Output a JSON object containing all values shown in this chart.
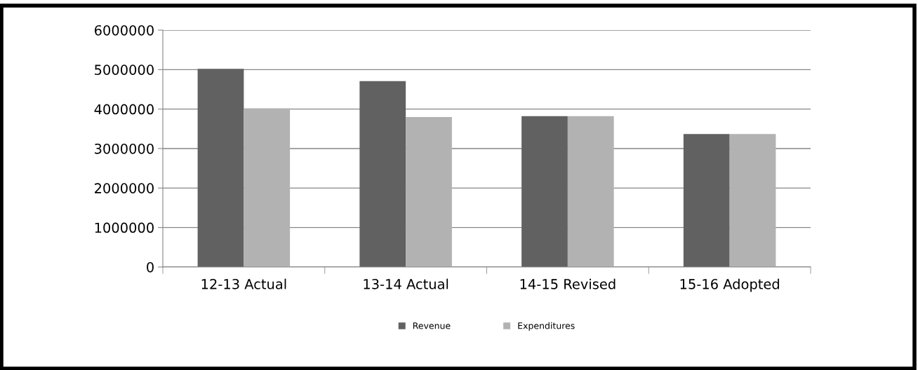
{
  "chart_data": {
    "type": "bar",
    "categories": [
      "12-13 Actual",
      "13-14 Actual",
      "14-15 Revised",
      "15-16 Adopted"
    ],
    "series": [
      {
        "name": "Revenue",
        "color": "#616161",
        "values": [
          5020000,
          4710000,
          3820000,
          3370000
        ]
      },
      {
        "name": "Expenditures",
        "color": "#b2b2b2",
        "values": [
          4020000,
          3800000,
          3820000,
          3370000
        ]
      }
    ],
    "ylim": [
      0,
      6000000
    ],
    "yticks": [
      0,
      1000000,
      2000000,
      3000000,
      4000000,
      5000000,
      6000000
    ],
    "grid": "y",
    "legend": "bottom"
  }
}
